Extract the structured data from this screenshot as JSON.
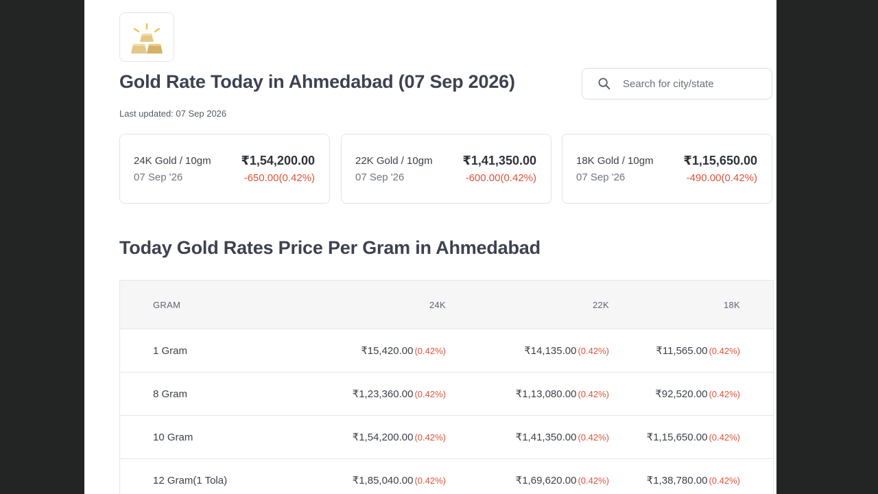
{
  "header": {
    "title": "Gold Rate Today in Ahmedabad (07 Sep 2026)",
    "last_updated": "Last updated: 07 Sep 2026",
    "search_placeholder": "Search for city/state",
    "logo_icon": "gold-bars-icon",
    "search_icon": "search-icon"
  },
  "cards": [
    {
      "label": "24K Gold / 10gm",
      "date": "07 Sep '26",
      "price": "₹1,54,200.00",
      "change": "-650.00(0.42%)"
    },
    {
      "label": "22K Gold / 10gm",
      "date": "07 Sep '26",
      "price": "₹1,41,350.00",
      "change": "-600.00(0.42%)"
    },
    {
      "label": "18K Gold / 10gm",
      "date": "07 Sep '26",
      "price": "₹1,15,650.00",
      "change": "-490.00(0.42%)"
    }
  ],
  "table": {
    "title": "Today Gold Rates Price Per Gram in Ahmedabad",
    "columns": [
      "GRAM",
      "24K",
      "22K",
      "18K"
    ],
    "rows": [
      {
        "gram": "1 Gram",
        "k24": {
          "price": "₹15,420.00",
          "pct": "(0.42%)"
        },
        "k22": {
          "price": "₹14,135.00",
          "pct": "(0.42%)"
        },
        "k18": {
          "price": "₹11,565.00",
          "pct": "(0.42%)"
        }
      },
      {
        "gram": "8 Gram",
        "k24": {
          "price": "₹1,23,360.00",
          "pct": "(0.42%)"
        },
        "k22": {
          "price": "₹1,13,080.00",
          "pct": "(0.42%)"
        },
        "k18": {
          "price": "₹92,520.00",
          "pct": "(0.42%)"
        }
      },
      {
        "gram": "10 Gram",
        "k24": {
          "price": "₹1,54,200.00",
          "pct": "(0.42%)"
        },
        "k22": {
          "price": "₹1,41,350.00",
          "pct": "(0.42%)"
        },
        "k18": {
          "price": "₹1,15,650.00",
          "pct": "(0.42%)"
        }
      },
      {
        "gram": "12 Gram(1 Tola)",
        "k24": {
          "price": "₹1,85,040.00",
          "pct": "(0.42%)"
        },
        "k22": {
          "price": "₹1,69,620.00",
          "pct": "(0.42%)"
        },
        "k18": {
          "price": "₹1,38,780.00",
          "pct": "(0.42%)"
        }
      }
    ]
  },
  "colors": {
    "backdrop": "#222523",
    "negative": "#e0523a",
    "gold_light": "#e8cf8a",
    "gold_dark": "#c9a24e"
  }
}
